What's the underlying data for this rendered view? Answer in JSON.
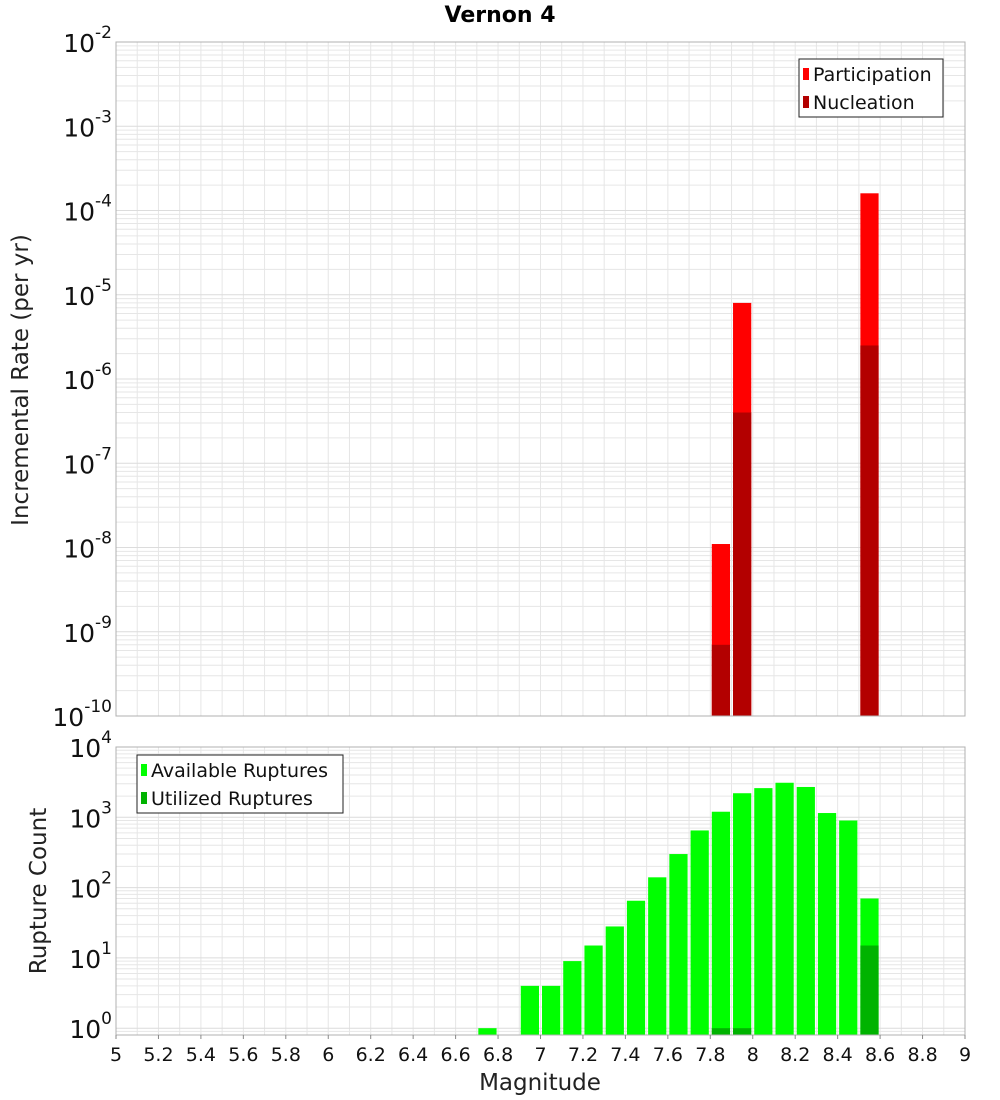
{
  "title": "Vernon 4",
  "colors": {
    "participation": "#ff0000",
    "nucleation": "#b30000",
    "available": "#00ff00",
    "utilized": "#00b300",
    "grid": "#e6e6e6",
    "frame": "#b0b0b0"
  },
  "chart_data": [
    {
      "type": "bar",
      "ylabel": "Incremental Rate (per yr)",
      "yscale": "log",
      "ylim": [
        1e-10,
        0.01
      ],
      "xlim": [
        5,
        9
      ],
      "grid": true,
      "legend": {
        "placement": "top-right",
        "entries": [
          "Participation",
          "Nucleation"
        ]
      },
      "y_tick_labels": [
        {
          "value": 1e-10,
          "base": "10",
          "exp": "-10"
        },
        {
          "value": 1e-09,
          "base": "10",
          "exp": "-9"
        },
        {
          "value": 1e-08,
          "base": "10",
          "exp": "-8"
        },
        {
          "value": 1e-07,
          "base": "10",
          "exp": "-7"
        },
        {
          "value": 1e-06,
          "base": "10",
          "exp": "-6"
        },
        {
          "value": 1e-05,
          "base": "10",
          "exp": "-5"
        },
        {
          "value": 0.0001,
          "base": "10",
          "exp": "-4"
        },
        {
          "value": 0.001,
          "base": "10",
          "exp": "-3"
        },
        {
          "value": 0.01,
          "base": "10",
          "exp": "-2"
        }
      ],
      "bar_width": 0.1,
      "series": [
        {
          "name": "Participation",
          "points": [
            [
              7.85,
              1.1e-08
            ],
            [
              7.95,
              8e-06
            ],
            [
              8.55,
              0.00016
            ]
          ]
        },
        {
          "name": "Nucleation",
          "points": [
            [
              7.85,
              7e-10
            ],
            [
              7.95,
              4e-07
            ],
            [
              8.55,
              2.5e-06
            ]
          ]
        }
      ]
    },
    {
      "type": "bar",
      "xlabel": "Magnitude",
      "ylabel": "Rupture Count",
      "yscale": "log",
      "ylim": [
        0.8,
        10000
      ],
      "xlim": [
        5,
        9
      ],
      "grid": true,
      "legend": {
        "placement": "top-left",
        "entries": [
          "Available Ruptures",
          "Utilized Ruptures"
        ]
      },
      "x_tick_labels": [
        "5",
        "5.2",
        "5.4",
        "5.6",
        "5.8",
        "6",
        "6.2",
        "6.4",
        "6.6",
        "6.8",
        "7",
        "7.2",
        "7.4",
        "7.6",
        "7.8",
        "8",
        "8.2",
        "8.4",
        "8.6",
        "8.8",
        "9"
      ],
      "y_tick_labels": [
        {
          "value": 1,
          "base": "10",
          "exp": "0"
        },
        {
          "value": 10,
          "base": "10",
          "exp": "1"
        },
        {
          "value": 100,
          "base": "10",
          "exp": "2"
        },
        {
          "value": 1000,
          "base": "10",
          "exp": "3"
        },
        {
          "value": 10000,
          "base": "10",
          "exp": "4"
        }
      ],
      "bar_width": 0.1,
      "series": [
        {
          "name": "Available Ruptures",
          "points": [
            [
              6.75,
              1
            ],
            [
              6.95,
              4
            ],
            [
              7.05,
              4
            ],
            [
              7.15,
              9
            ],
            [
              7.25,
              15
            ],
            [
              7.35,
              28
            ],
            [
              7.45,
              65
            ],
            [
              7.55,
              140
            ],
            [
              7.65,
              300
            ],
            [
              7.75,
              650
            ],
            [
              7.85,
              1200
            ],
            [
              7.95,
              2200
            ],
            [
              8.05,
              2600
            ],
            [
              8.15,
              3100
            ],
            [
              8.25,
              2700
            ],
            [
              8.35,
              1150
            ],
            [
              8.45,
              900
            ],
            [
              8.55,
              70
            ]
          ]
        },
        {
          "name": "Utilized Ruptures",
          "points": [
            [
              7.85,
              1
            ],
            [
              7.95,
              1
            ],
            [
              8.55,
              15
            ]
          ]
        }
      ]
    }
  ]
}
